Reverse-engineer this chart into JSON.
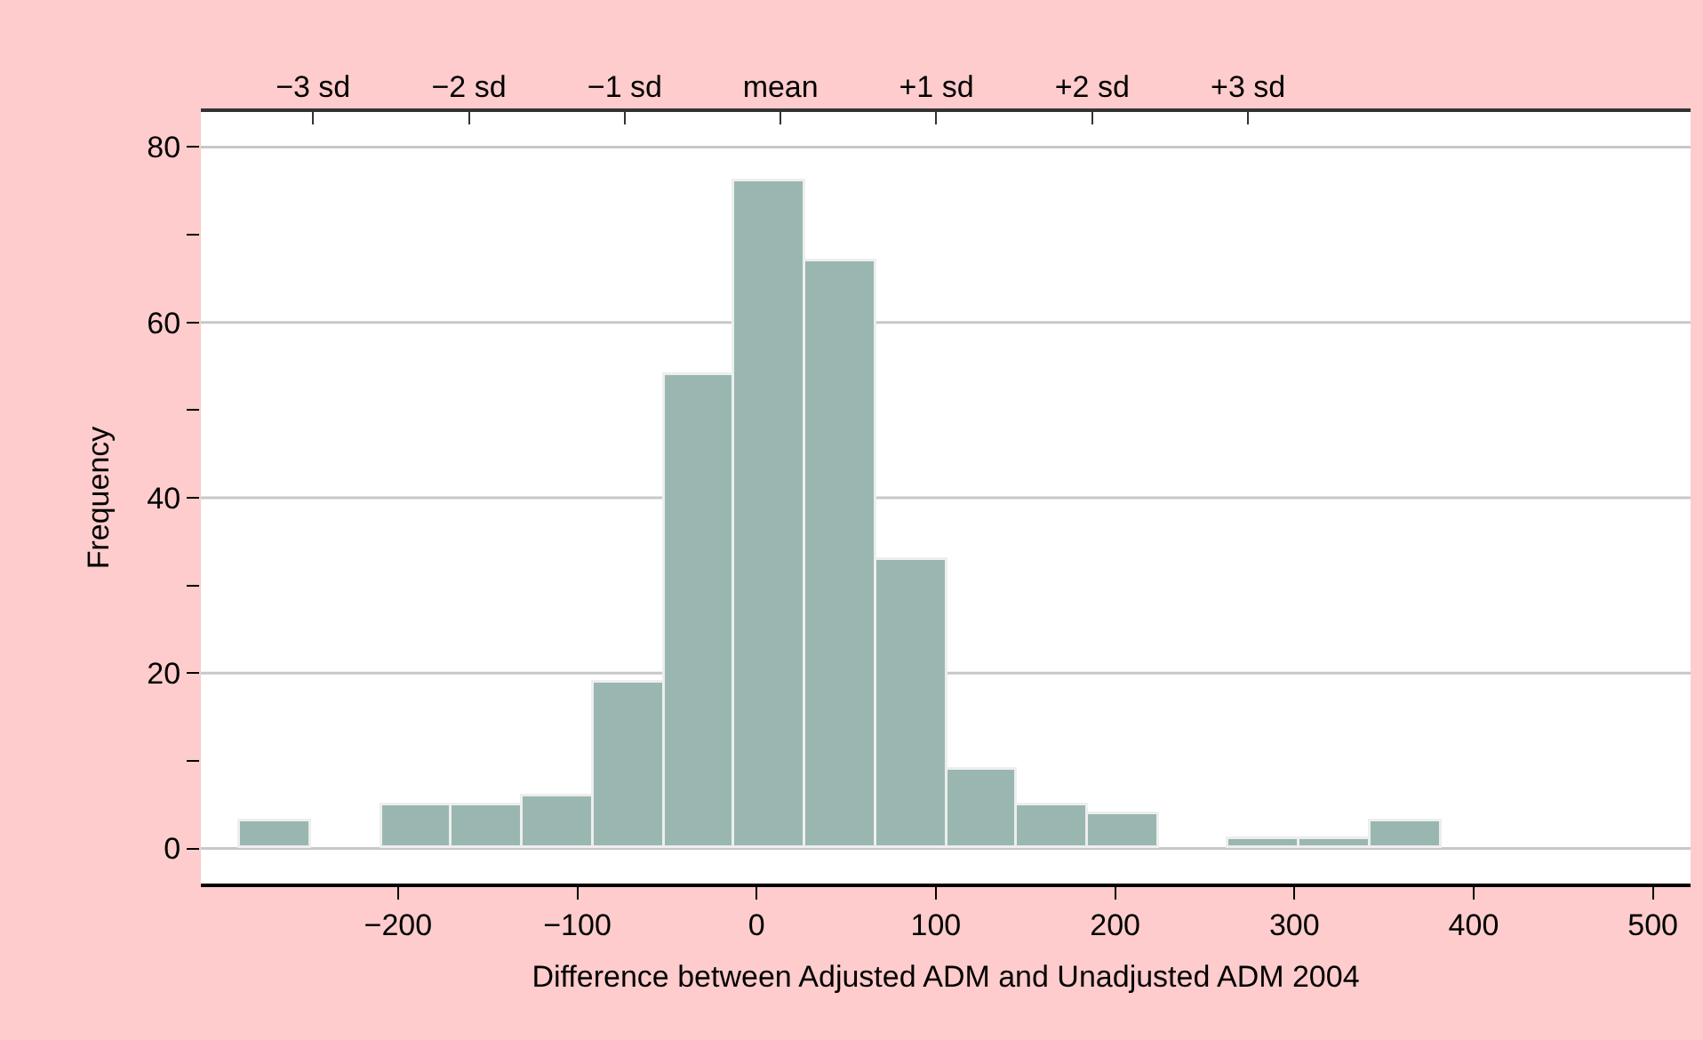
{
  "chart_data": {
    "type": "histogram",
    "xlabel": "Difference between Adjusted ADM and Unadjusted ADM 2004",
    "ylabel": "Frequency",
    "bins": [
      -288,
      -248.6,
      -209.2,
      -169.8,
      -130.4,
      -91,
      -51.6,
      -12.2,
      27.2,
      66.6,
      106,
      145.4,
      184.8,
      224.2,
      263.6,
      303,
      342.4,
      381.8,
      421.2,
      460.6,
      500
    ],
    "values": [
      3,
      0,
      5,
      5,
      6,
      19,
      54,
      76,
      67,
      33,
      9,
      5,
      4,
      0,
      1,
      1,
      3,
      0,
      0,
      0
    ],
    "color": "#99b7b0",
    "xlim": [
      -310,
      521
    ],
    "xticks": [
      -200,
      -100,
      0,
      100,
      200,
      300,
      400,
      500
    ],
    "x2lim": [
      -3.72,
      5.84
    ],
    "x2ticks": [
      {
        "value": -3,
        "label": "−3 sd"
      },
      {
        "value": -2,
        "label": "−2 sd"
      },
      {
        "value": -1,
        "label": "−1 sd"
      },
      {
        "value": 0,
        "label": "mean"
      },
      {
        "value": 1,
        "label": "+1 sd"
      },
      {
        "value": 2,
        "label": "+2 sd"
      },
      {
        "value": 3,
        "label": "+3 sd"
      }
    ],
    "ylim": [
      -4,
      84
    ],
    "yticks": [
      0,
      {
        "value": 10,
        "label": null
      },
      20,
      {
        "value": 30,
        "label": null
      },
      40,
      {
        "value": 50,
        "label": null
      },
      60,
      {
        "value": 70,
        "label": null
      },
      80
    ],
    "grid": "y"
  }
}
